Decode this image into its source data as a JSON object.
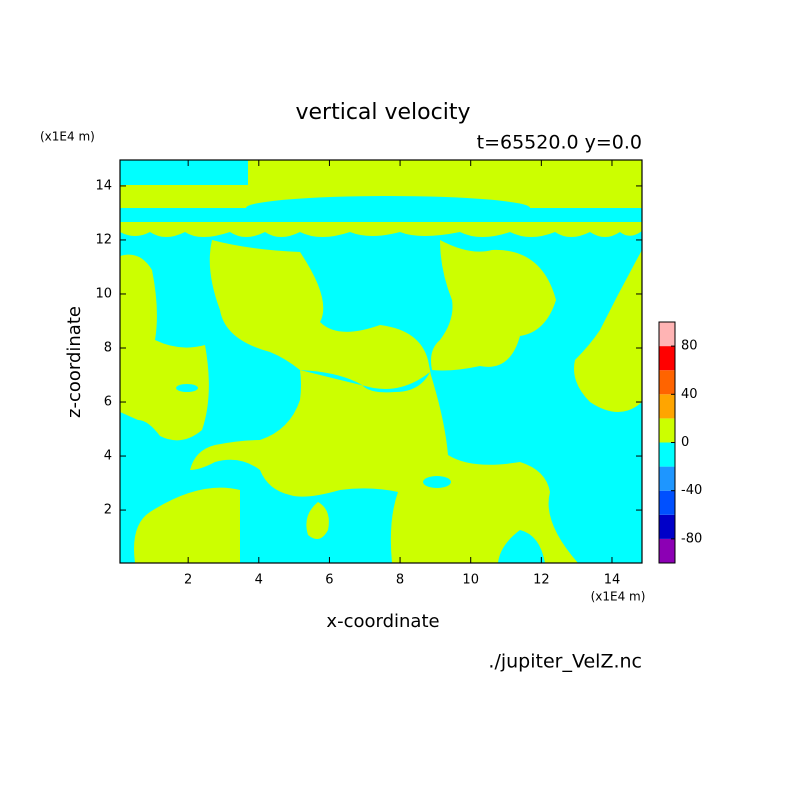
{
  "chart_data": {
    "type": "contour",
    "title": "vertical velocity",
    "subtitle": "t=65520.0 y=0.0",
    "x_label": "x-coordinate",
    "y_label": "z-coordinate",
    "x_unit": "(x1E4 m)",
    "y_unit": "(x1E4 m)",
    "source": "./jupiter_VelZ.nc",
    "xlim": [
      0.07,
      14.85
    ],
    "ylim": [
      0.04,
      14.96
    ],
    "xticks": [
      2,
      4,
      6,
      8,
      10,
      12,
      14
    ],
    "yticks": [
      2,
      4,
      6,
      8,
      10,
      12,
      14
    ],
    "colorbar": {
      "levels": [
        -100,
        -80,
        -60,
        -40,
        -20,
        0,
        20,
        40,
        60,
        80,
        100
      ],
      "colors": [
        "#8c00b4",
        "#0000c8",
        "#0050ff",
        "#1e96ff",
        "#00ffff",
        "#ccff00",
        "#ffa500",
        "#ff6400",
        "#ff0000",
        "#ffb4b4"
      ],
      "ticks": [
        -80,
        -40,
        0,
        40,
        80
      ]
    }
  }
}
